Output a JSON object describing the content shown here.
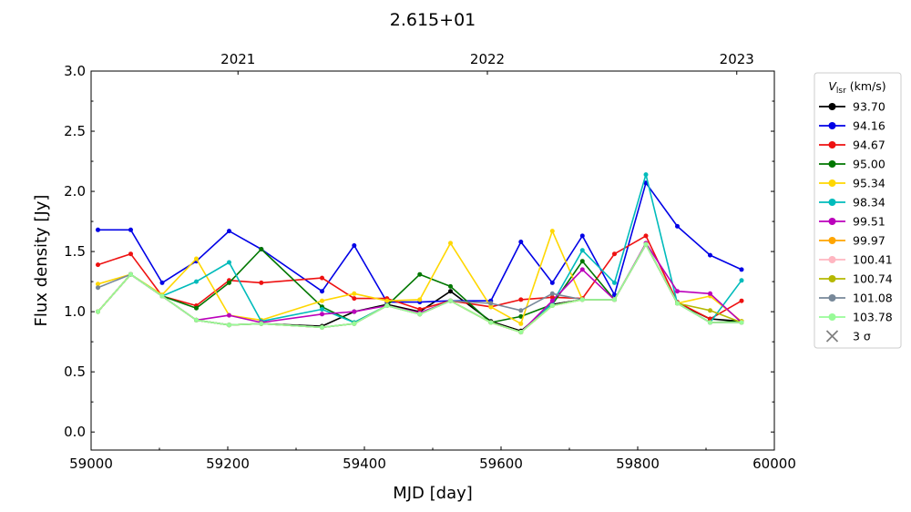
{
  "chart_data": {
    "type": "line",
    "title": "2.615+01",
    "xlabel": "MJD [day]",
    "ylabel": "Flux density [Jy]",
    "xlim": [
      59000,
      60000
    ],
    "ylim": [
      -0.15,
      3.0
    ],
    "xticks": [
      59000,
      59200,
      59400,
      59600,
      59800,
      60000
    ],
    "yticks": [
      0.0,
      0.5,
      1.0,
      1.5,
      2.0,
      2.5,
      3.0
    ],
    "xticks_minor": [
      59100,
      59300,
      59500,
      59700,
      59900
    ],
    "yticks_minor": [
      0.25,
      0.75,
      1.25,
      1.75,
      2.25,
      2.75
    ],
    "top_axis": [
      {
        "label": "2021",
        "mjd": 59215
      },
      {
        "label": "2022",
        "mjd": 59580
      },
      {
        "label": "2023",
        "mjd": 59945
      }
    ],
    "grid": false,
    "legend": {
      "position": "outside-right",
      "title_main": "V",
      "title_sub": "lsr",
      "title_unit": " (km/s)",
      "sigma_label": "3 σ"
    },
    "x": [
      59010,
      59058,
      59104,
      59154,
      59202,
      59249,
      59338,
      59385,
      59433,
      59481,
      59526,
      59585,
      59629,
      59675,
      59719,
      59766,
      59812,
      59858,
      59906,
      59952
    ],
    "series": [
      {
        "name": "93.70",
        "color": "#000000",
        "values": [
          1.0,
          1.31,
          1.13,
          0.93,
          0.89,
          0.9,
          0.88,
          1.0,
          1.06,
          1.0,
          1.17,
          0.92,
          0.84,
          1.06,
          1.1,
          1.1,
          1.56,
          1.07,
          0.94,
          0.92
        ]
      },
      {
        "name": "94.16",
        "color": "#0000e6",
        "values": [
          1.68,
          1.68,
          1.24,
          1.42,
          1.67,
          1.52,
          1.17,
          1.55,
          1.08,
          1.08,
          1.09,
          1.09,
          1.58,
          1.24,
          1.63,
          1.14,
          2.07,
          1.71,
          1.47,
          1.35
        ]
      },
      {
        "name": "94.67",
        "color": "#ee1111",
        "values": [
          1.39,
          1.48,
          1.13,
          1.05,
          1.26,
          1.24,
          1.28,
          1.11,
          1.11,
          1.02,
          1.09,
          1.04,
          1.1,
          1.12,
          1.11,
          1.48,
          1.63,
          1.08,
          0.94,
          1.09
        ]
      },
      {
        "name": "95.00",
        "color": "#007700",
        "values": [
          1.0,
          1.31,
          1.13,
          1.03,
          1.24,
          1.52,
          1.04,
          0.91,
          1.05,
          1.31,
          1.21,
          0.91,
          0.96,
          1.06,
          1.42,
          1.1,
          1.56,
          1.07,
          0.91,
          0.92
        ]
      },
      {
        "name": "95.34",
        "color": "#ffd700",
        "values": [
          1.23,
          1.31,
          1.14,
          1.44,
          0.97,
          0.93,
          1.09,
          1.15,
          1.09,
          1.1,
          1.57,
          1.04,
          0.9,
          1.67,
          1.1,
          1.1,
          1.56,
          1.07,
          1.13,
          0.92
        ]
      },
      {
        "name": "98.34",
        "color": "#00bbbb",
        "values": [
          1.0,
          1.31,
          1.13,
          1.25,
          1.41,
          0.92,
          1.02,
          0.91,
          1.05,
          0.98,
          1.09,
          0.91,
          0.83,
          1.07,
          1.51,
          1.24,
          2.14,
          1.07,
          0.91,
          1.26
        ]
      },
      {
        "name": "99.51",
        "color": "#bb00bb",
        "values": [
          1.0,
          1.31,
          1.13,
          0.93,
          0.97,
          0.91,
          0.98,
          1.0,
          1.05,
          0.99,
          1.09,
          0.91,
          0.83,
          1.09,
          1.35,
          1.1,
          1.57,
          1.17,
          1.15,
          0.91
        ]
      },
      {
        "name": "99.97",
        "color": "#ffa500",
        "values": [
          1.0,
          1.31,
          1.13,
          0.93,
          0.89,
          0.9,
          0.87,
          0.9,
          1.05,
          0.98,
          1.09,
          0.91,
          0.83,
          1.05,
          1.1,
          1.1,
          1.56,
          1.07,
          0.91,
          0.91
        ]
      },
      {
        "name": "100.41",
        "color": "#ffb6c1",
        "values": [
          1.0,
          1.31,
          1.13,
          0.93,
          0.89,
          0.9,
          0.87,
          0.9,
          1.05,
          0.98,
          1.09,
          0.91,
          0.83,
          1.05,
          1.1,
          1.1,
          1.56,
          1.07,
          0.91,
          0.91
        ]
      },
      {
        "name": "100.74",
        "color": "#b5b800",
        "values": [
          1.0,
          1.31,
          1.13,
          0.93,
          0.89,
          0.9,
          0.87,
          0.9,
          1.05,
          0.98,
          1.09,
          0.91,
          0.83,
          1.05,
          1.1,
          1.1,
          1.56,
          1.07,
          1.01,
          0.91
        ]
      },
      {
        "name": "101.08",
        "color": "#778899",
        "values": [
          1.2,
          1.31,
          1.13,
          0.93,
          0.89,
          0.9,
          0.87,
          0.9,
          1.05,
          0.98,
          1.09,
          1.07,
          1.01,
          1.15,
          1.1,
          1.1,
          1.56,
          1.07,
          0.91,
          0.91
        ]
      },
      {
        "name": "103.78",
        "color": "#98fb98",
        "values": [
          1.0,
          1.31,
          1.13,
          0.93,
          0.89,
          0.9,
          0.87,
          0.9,
          1.05,
          0.98,
          1.09,
          0.91,
          0.83,
          1.05,
          1.1,
          1.1,
          1.56,
          1.07,
          0.91,
          0.91
        ]
      }
    ]
  }
}
